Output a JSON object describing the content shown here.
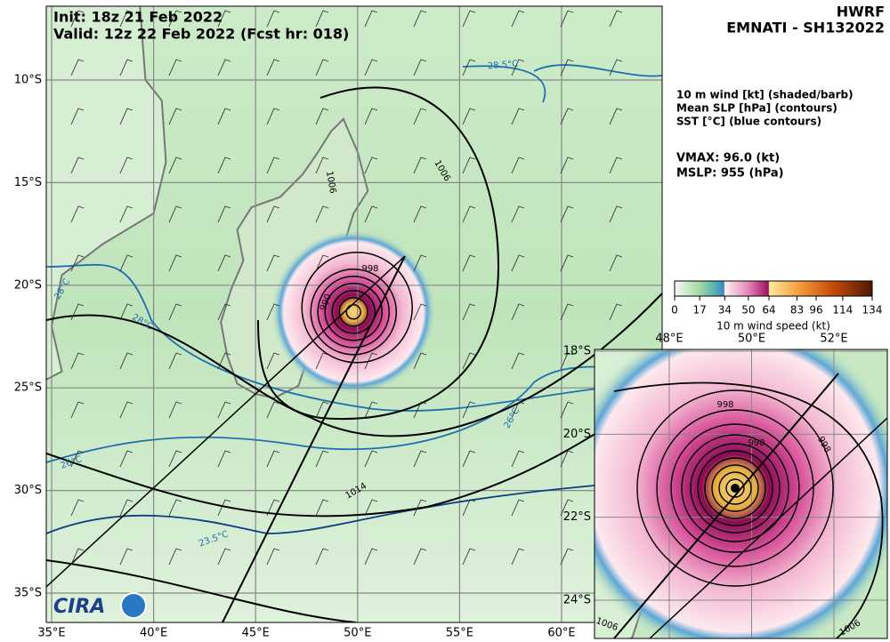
{
  "header": {
    "init": "Init:  18z 21 Feb 2022",
    "valid": "Valid: 12z 22 Feb 2022 (Fcst hr: 018)",
    "model": "HWRF",
    "storm": "EMNATI - SH132022"
  },
  "legend": {
    "lines": [
      "10 m wind [kt] (shaded/barb)",
      "Mean SLP [hPa] (contours)",
      "SST [°C] (blue contours)"
    ],
    "vmax": "VMAX:  96.0 (kt)",
    "mslp": "MSLP:  955 (hPa)"
  },
  "colorbar": {
    "ticks": [
      0,
      17,
      34,
      50,
      64,
      83,
      96,
      114,
      134
    ],
    "lim": [
      0,
      134
    ],
    "label": "10 m wind speed (kt)"
  },
  "map": {
    "xticks": [
      {
        "value": 35,
        "label": "35°E"
      },
      {
        "value": 40,
        "label": "40°E"
      },
      {
        "value": 45,
        "label": "45°E"
      },
      {
        "value": 50,
        "label": "50°E"
      },
      {
        "value": 55,
        "label": "55°E"
      },
      {
        "value": 60,
        "label": "60°E"
      }
    ],
    "yticks": [
      {
        "value": -10,
        "label": "10°S"
      },
      {
        "value": -15,
        "label": "15°S"
      },
      {
        "value": -20,
        "label": "20°S"
      },
      {
        "value": -25,
        "label": "25°S"
      },
      {
        "value": -30,
        "label": "30°S"
      },
      {
        "value": -35,
        "label": "35°S"
      }
    ],
    "contour_labels": [
      "1006",
      "1006",
      "998",
      "990",
      "1014"
    ],
    "sst_labels": [
      "28.5°C",
      "28°C",
      "28°C",
      "26°C",
      "26°C",
      "23.5°C"
    ],
    "logo": "CIRA"
  },
  "inset": {
    "xticks": [
      {
        "value": 48,
        "label": "48°E"
      },
      {
        "value": 50,
        "label": "50°E"
      },
      {
        "value": 52,
        "label": "52°E"
      }
    ],
    "yticks": [
      {
        "value": -18,
        "label": "18°S"
      },
      {
        "value": -20,
        "label": "20°S"
      },
      {
        "value": -22,
        "label": "22°S"
      },
      {
        "value": -24,
        "label": "24°S"
      }
    ],
    "contour_labels": [
      "998",
      "990",
      "998",
      "1006",
      "1006"
    ]
  }
}
